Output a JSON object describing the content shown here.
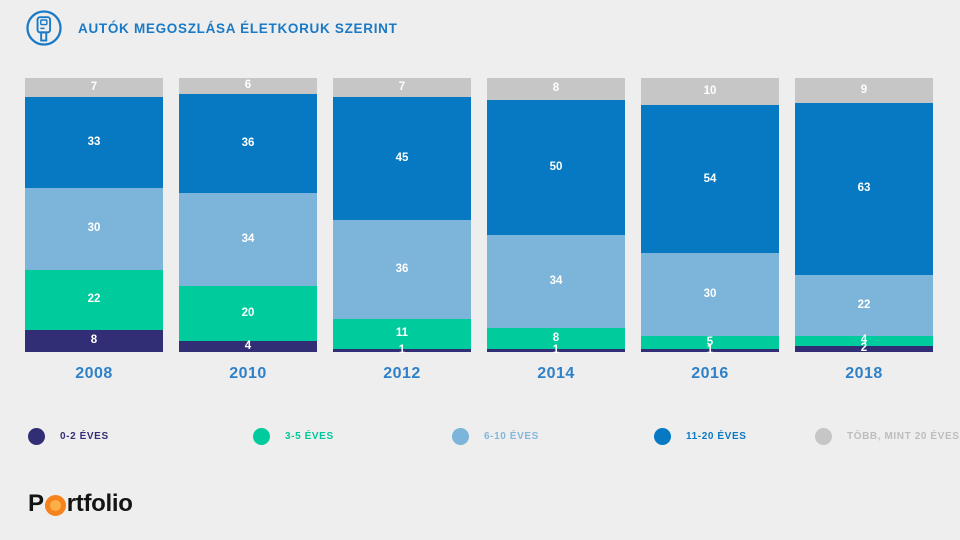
{
  "header": {
    "title": "AUTÓK MEGOSZLÁSA ÉLETKORUK SZERINT",
    "icon": "car-key-icon",
    "title_color": "#1b7ac5"
  },
  "chart_data": {
    "type": "bar",
    "stacked": true,
    "title": "AUTÓK MEGOSZLÁSA ÉLETKORUK SZERINT",
    "unit": "percent",
    "ylim": [
      0,
      100
    ],
    "grid": false,
    "legend_position": "bottom",
    "categories": [
      "2008",
      "2010",
      "2012",
      "2014",
      "2016",
      "2018"
    ],
    "series": [
      {
        "name": "0-2 ÉVES",
        "color": "#322e75",
        "label_color": "#332e75",
        "values": [
          8,
          4,
          1,
          1,
          1,
          2
        ]
      },
      {
        "name": "3-5 ÉVES",
        "color": "#00cb9c",
        "label_color": "#00c89a",
        "values": [
          22,
          20,
          11,
          8,
          5,
          4
        ]
      },
      {
        "name": "6-10 ÉVES",
        "color": "#7cb5d9",
        "label_color": "#84b7da",
        "values": [
          30,
          34,
          36,
          34,
          30,
          22
        ]
      },
      {
        "name": "11-20 ÉVES",
        "color": "#0679c2",
        "label_color": "#0b79c4",
        "values": [
          33,
          36,
          45,
          50,
          54,
          63
        ]
      },
      {
        "name": "TÖBB, MINT 20 ÉVES",
        "color": "#c6c6c6",
        "label_color": "#bdbdbd",
        "values": [
          7,
          6,
          7,
          8,
          10,
          9
        ]
      }
    ],
    "stack_order_top_to_bottom": [
      "TÖBB, MINT 20 ÉVES",
      "11-20 ÉVES",
      "6-10 ÉVES",
      "3-5 ÉVES",
      "0-2 ÉVES"
    ],
    "year_label_color": "#2e81c8"
  },
  "logo": {
    "prefix": "P",
    "suffix": "rtfolio",
    "circle_outer_color": "#f5821f",
    "circle_inner_color": "#fbaf45"
  }
}
